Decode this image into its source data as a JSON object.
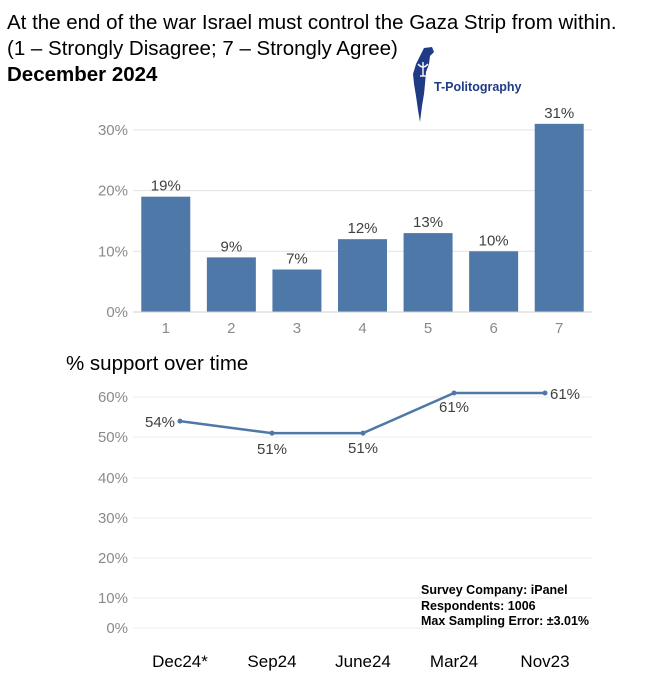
{
  "header": {
    "line1": "At the end of the war Israel must control the Gaza Strip from within.",
    "line2": "(1 – Strongly Disagree; 7 – Strongly Agree)",
    "line3": "December 2024"
  },
  "logo": {
    "text": "T-Politography",
    "color": "#1f3b86"
  },
  "footnote": {
    "company": "Survey Company: iPanel",
    "respondents": "Respondents: 1006",
    "error": "Max Sampling Error: ±3.01%"
  },
  "chart_data": [
    {
      "type": "bar",
      "title": "",
      "categories": [
        "1",
        "2",
        "3",
        "4",
        "5",
        "6",
        "7"
      ],
      "values": [
        19,
        9,
        7,
        12,
        13,
        10,
        31
      ],
      "value_labels": [
        "19%",
        "9%",
        "7%",
        "12%",
        "13%",
        "10%",
        "31%"
      ],
      "ylim": [
        0,
        33
      ],
      "yticks": [
        0,
        10,
        20,
        30
      ],
      "ytick_labels": [
        "0%",
        "10%",
        "20%",
        "30%"
      ],
      "color": "#4e78a8",
      "grid": true
    },
    {
      "type": "line",
      "title": "% support over time",
      "categories": [
        "Dec24*",
        "Sep24",
        "June24",
        "Mar24",
        "Nov23"
      ],
      "values": [
        54,
        51,
        51,
        61,
        61
      ],
      "value_labels": [
        "54%",
        "51%",
        "51%",
        "61%",
        "61%"
      ],
      "ylim": [
        0,
        60
      ],
      "yticks": [
        0,
        10,
        20,
        30,
        40,
        50,
        60
      ],
      "ytick_labels": [
        "0%",
        "10%",
        "20%",
        "30%",
        "40%",
        "50%",
        "60%"
      ],
      "color": "#4e78a8",
      "grid": true
    }
  ]
}
